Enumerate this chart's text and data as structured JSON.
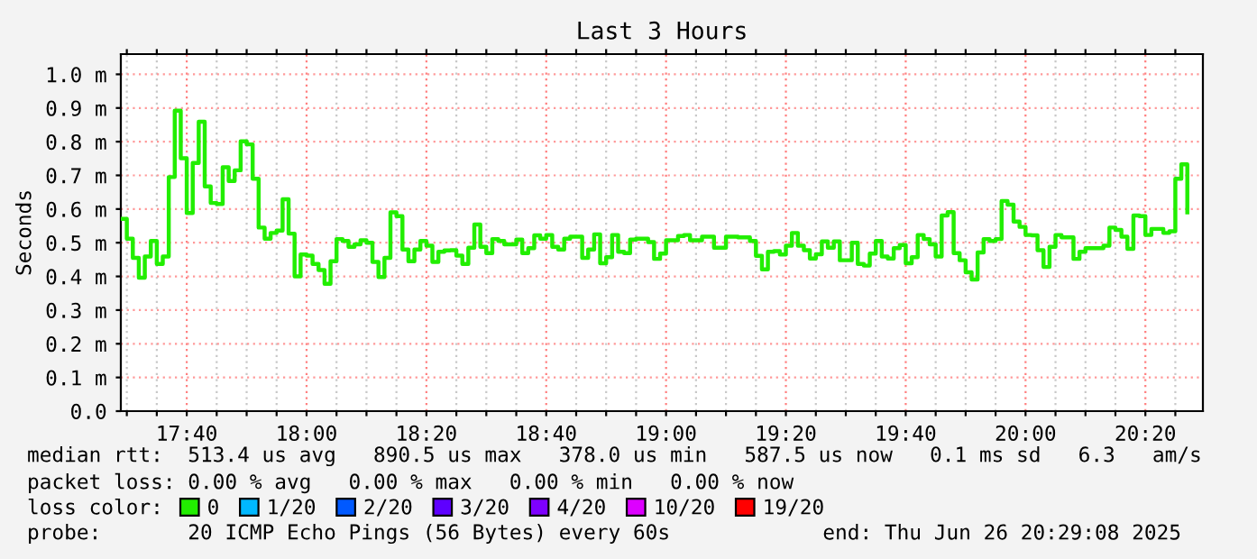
{
  "chart_data": {
    "type": "step",
    "title": "Last 3 Hours",
    "ylabel": "Seconds",
    "legend_title": "loss color:",
    "xlim": [
      "2025-06-26T17:29",
      "2025-06-26T20:29:36"
    ],
    "xticks": [
      {
        "value": "2025-06-26T17:30",
        "label": null
      },
      {
        "value": "2025-06-26T17:35",
        "label": null
      },
      {
        "value": "2025-06-26T17:40",
        "label": "17:40"
      },
      {
        "value": "2025-06-26T17:45",
        "label": null
      },
      {
        "value": "2025-06-26T17:50",
        "label": null
      },
      {
        "value": "2025-06-26T17:55",
        "label": null
      },
      {
        "value": "2025-06-26T18:00",
        "label": "18:00"
      },
      {
        "value": "2025-06-26T18:05",
        "label": null
      },
      {
        "value": "2025-06-26T18:10",
        "label": null
      },
      {
        "value": "2025-06-26T18:15",
        "label": null
      },
      {
        "value": "2025-06-26T18:20",
        "label": "18:20"
      },
      {
        "value": "2025-06-26T18:25",
        "label": null
      },
      {
        "value": "2025-06-26T18:30",
        "label": null
      },
      {
        "value": "2025-06-26T18:35",
        "label": null
      },
      {
        "value": "2025-06-26T18:40",
        "label": "18:40"
      },
      {
        "value": "2025-06-26T18:45",
        "label": null
      },
      {
        "value": "2025-06-26T18:50",
        "label": null
      },
      {
        "value": "2025-06-26T18:55",
        "label": null
      },
      {
        "value": "2025-06-26T19:00",
        "label": "19:00"
      },
      {
        "value": "2025-06-26T19:05",
        "label": null
      },
      {
        "value": "2025-06-26T19:10",
        "label": null
      },
      {
        "value": "2025-06-26T19:15",
        "label": null
      },
      {
        "value": "2025-06-26T19:20",
        "label": "19:20"
      },
      {
        "value": "2025-06-26T19:25",
        "label": null
      },
      {
        "value": "2025-06-26T19:30",
        "label": null
      },
      {
        "value": "2025-06-26T19:35",
        "label": null
      },
      {
        "value": "2025-06-26T19:40",
        "label": "19:40"
      },
      {
        "value": "2025-06-26T19:45",
        "label": null
      },
      {
        "value": "2025-06-26T19:50",
        "label": null
      },
      {
        "value": "2025-06-26T19:55",
        "label": null
      },
      {
        "value": "2025-06-26T20:00",
        "label": "20:00"
      },
      {
        "value": "2025-06-26T20:05",
        "label": null
      },
      {
        "value": "2025-06-26T20:10",
        "label": null
      },
      {
        "value": "2025-06-26T20:15",
        "label": null
      },
      {
        "value": "2025-06-26T20:20",
        "label": "20:20"
      },
      {
        "value": "2025-06-26T20:25",
        "label": null
      }
    ],
    "ylim": [
      0,
      1.06
    ],
    "yticks": [
      {
        "value": 0,
        "label": "0.0"
      },
      {
        "value": 0.1,
        "label": "0.1 m"
      },
      {
        "value": 0.2,
        "label": "0.2 m"
      },
      {
        "value": 0.3,
        "label": "0.3 m"
      },
      {
        "value": 0.4,
        "label": "0.4 m"
      },
      {
        "value": 0.5,
        "label": "0.5 m"
      },
      {
        "value": 0.6,
        "label": "0.6 m"
      },
      {
        "value": 0.7,
        "label": "0.7 m"
      },
      {
        "value": 0.8,
        "label": "0.8 m"
      },
      {
        "value": 0.9,
        "label": "0.9 m"
      },
      {
        "value": 1.0,
        "label": "1.0 m"
      }
    ],
    "grid": true,
    "legend": "bottom",
    "annotations": [
      "median rtt:  513.4 us avg   890.5 us max   378.0 us min   587.5 us now   0.1 ms sd   6.3   am/s",
      "packet loss: 0.00 % avg   0.00 % max   0.00 % min   0.00 % now",
      "probe:       20 ICMP Echo Pings (56 Bytes) every 60s",
      "end: Thu Jun 26 20:29:08 2025"
    ],
    "series": [
      {
        "name": "0",
        "color": "#22ee00",
        "x": [
          "2025-06-26T17:29",
          "2025-06-26T17:30",
          "2025-06-26T17:31",
          "2025-06-26T17:32",
          "2025-06-26T17:33",
          "2025-06-26T17:34",
          "2025-06-26T17:35",
          "2025-06-26T17:36",
          "2025-06-26T17:37",
          "2025-06-26T17:38",
          "2025-06-26T17:39",
          "2025-06-26T17:40",
          "2025-06-26T17:41",
          "2025-06-26T17:42",
          "2025-06-26T17:43",
          "2025-06-26T17:44",
          "2025-06-26T17:45",
          "2025-06-26T17:46",
          "2025-06-26T17:47",
          "2025-06-26T17:48",
          "2025-06-26T17:49",
          "2025-06-26T17:50",
          "2025-06-26T17:51",
          "2025-06-26T17:52",
          "2025-06-26T17:53",
          "2025-06-26T17:54",
          "2025-06-26T17:55",
          "2025-06-26T17:56",
          "2025-06-26T17:57",
          "2025-06-26T17:58",
          "2025-06-26T17:59",
          "2025-06-26T18:00",
          "2025-06-26T18:01",
          "2025-06-26T18:02",
          "2025-06-26T18:03",
          "2025-06-26T18:04",
          "2025-06-26T18:05",
          "2025-06-26T18:06",
          "2025-06-26T18:07",
          "2025-06-26T18:08",
          "2025-06-26T18:09",
          "2025-06-26T18:10",
          "2025-06-26T18:11",
          "2025-06-26T18:12",
          "2025-06-26T18:13",
          "2025-06-26T18:14",
          "2025-06-26T18:15",
          "2025-06-26T18:16",
          "2025-06-26T18:17",
          "2025-06-26T18:18",
          "2025-06-26T18:19",
          "2025-06-26T18:20",
          "2025-06-26T18:21",
          "2025-06-26T18:22",
          "2025-06-26T18:23",
          "2025-06-26T18:24",
          "2025-06-26T18:25",
          "2025-06-26T18:26",
          "2025-06-26T18:27",
          "2025-06-26T18:28",
          "2025-06-26T18:29",
          "2025-06-26T18:30",
          "2025-06-26T18:31",
          "2025-06-26T18:32",
          "2025-06-26T18:33",
          "2025-06-26T18:35",
          "2025-06-26T18:36",
          "2025-06-26T18:37",
          "2025-06-26T18:38",
          "2025-06-26T18:39",
          "2025-06-26T18:40",
          "2025-06-26T18:41",
          "2025-06-26T18:42",
          "2025-06-26T18:43",
          "2025-06-26T18:44",
          "2025-06-26T18:46",
          "2025-06-26T18:47",
          "2025-06-26T18:48",
          "2025-06-26T18:49",
          "2025-06-26T18:50",
          "2025-06-26T18:51",
          "2025-06-26T18:52",
          "2025-06-26T18:53",
          "2025-06-26T18:54",
          "2025-06-26T18:55",
          "2025-06-26T18:57",
          "2025-06-26T18:58",
          "2025-06-26T18:59",
          "2025-06-26T19:00",
          "2025-06-26T19:02",
          "2025-06-26T19:03",
          "2025-06-26T19:04",
          "2025-06-26T19:06",
          "2025-06-26T19:08",
          "2025-06-26T19:10",
          "2025-06-26T19:12",
          "2025-06-26T19:14",
          "2025-06-26T19:15",
          "2025-06-26T19:16",
          "2025-06-26T19:17",
          "2025-06-26T19:18",
          "2025-06-26T19:19",
          "2025-06-26T19:20",
          "2025-06-26T19:21",
          "2025-06-26T19:22",
          "2025-06-26T19:23",
          "2025-06-26T19:24",
          "2025-06-26T19:25",
          "2025-06-26T19:26",
          "2025-06-26T19:27",
          "2025-06-26T19:28",
          "2025-06-26T19:29",
          "2025-06-26T19:31",
          "2025-06-26T19:32",
          "2025-06-26T19:33",
          "2025-06-26T19:34",
          "2025-06-26T19:35",
          "2025-06-26T19:36",
          "2025-06-26T19:37",
          "2025-06-26T19:38",
          "2025-06-26T19:39",
          "2025-06-26T19:40",
          "2025-06-26T19:41",
          "2025-06-26T19:42",
          "2025-06-26T19:43",
          "2025-06-26T19:44",
          "2025-06-26T19:45",
          "2025-06-26T19:46",
          "2025-06-26T19:47",
          "2025-06-26T19:48",
          "2025-06-26T19:49",
          "2025-06-26T19:50",
          "2025-06-26T19:51",
          "2025-06-26T19:52",
          "2025-06-26T19:53",
          "2025-06-26T19:54",
          "2025-06-26T19:55",
          "2025-06-26T19:56",
          "2025-06-26T19:57",
          "2025-06-26T19:58",
          "2025-06-26T19:59",
          "2025-06-26T20:00",
          "2025-06-26T20:01",
          "2025-06-26T20:02",
          "2025-06-26T20:03",
          "2025-06-26T20:04",
          "2025-06-26T20:05",
          "2025-06-26T20:06",
          "2025-06-26T20:08",
          "2025-06-26T20:09",
          "2025-06-26T20:10",
          "2025-06-26T20:13",
          "2025-06-26T20:14",
          "2025-06-26T20:15",
          "2025-06-26T20:16",
          "2025-06-26T20:17",
          "2025-06-26T20:18",
          "2025-06-26T20:19",
          "2025-06-26T20:20",
          "2025-06-26T20:21",
          "2025-06-26T20:23",
          "2025-06-26T20:24",
          "2025-06-26T20:25",
          "2025-06-26T20:26",
          "2025-06-26T20:27"
        ],
        "values": [
          0.571,
          0.512,
          0.455,
          0.396,
          0.459,
          0.505,
          0.437,
          0.459,
          0.695,
          0.892,
          0.751,
          0.588,
          0.737,
          0.859,
          0.667,
          0.618,
          0.615,
          0.724,
          0.683,
          0.715,
          0.801,
          0.792,
          0.69,
          0.545,
          0.512,
          0.529,
          0.536,
          0.629,
          0.527,
          0.4,
          0.465,
          0.462,
          0.437,
          0.419,
          0.378,
          0.445,
          0.511,
          0.505,
          0.488,
          0.495,
          0.507,
          0.5,
          0.443,
          0.398,
          0.455,
          0.59,
          0.579,
          0.48,
          0.445,
          0.48,
          0.505,
          0.491,
          0.443,
          0.473,
          0.477,
          0.478,
          0.462,
          0.437,
          0.485,
          0.554,
          0.488,
          0.469,
          0.511,
          0.505,
          0.495,
          0.509,
          0.469,
          0.484,
          0.522,
          0.512,
          0.523,
          0.488,
          0.48,
          0.512,
          0.518,
          0.455,
          0.48,
          0.525,
          0.439,
          0.457,
          0.523,
          0.473,
          0.469,
          0.509,
          0.512,
          0.502,
          0.452,
          0.468,
          0.507,
          0.52,
          0.523,
          0.507,
          0.518,
          0.485,
          0.518,
          0.516,
          0.505,
          0.461,
          0.421,
          0.473,
          0.475,
          0.465,
          0.491,
          0.529,
          0.491,
          0.478,
          0.453,
          0.466,
          0.504,
          0.485,
          0.504,
          0.448,
          0.5,
          0.437,
          0.432,
          0.468,
          0.505,
          0.459,
          0.453,
          0.484,
          0.493,
          0.439,
          0.457,
          0.523,
          0.511,
          0.495,
          0.459,
          0.581,
          0.591,
          0.469,
          0.448,
          0.412,
          0.391,
          0.471,
          0.511,
          0.505,
          0.511,
          0.624,
          0.613,
          0.563,
          0.547,
          0.523,
          0.522,
          0.478,
          0.428,
          0.488,
          0.523,
          0.516,
          0.452,
          0.473,
          0.484,
          0.491,
          0.545,
          0.538,
          0.518,
          0.482,
          0.581,
          0.579,
          0.523,
          0.541,
          0.529,
          0.534,
          0.69,
          0.733,
          0.59
        ]
      },
      {
        "name": "1/20",
        "color": "#00b8ff"
      },
      {
        "name": "2/20",
        "color": "#0059ff"
      },
      {
        "name": "3/20",
        "color": "#5e00ff"
      },
      {
        "name": "4/20",
        "color": "#7e00ff"
      },
      {
        "name": "10/20",
        "color": "#dd00ff"
      },
      {
        "name": "19/20",
        "color": "#ff0000"
      }
    ]
  }
}
